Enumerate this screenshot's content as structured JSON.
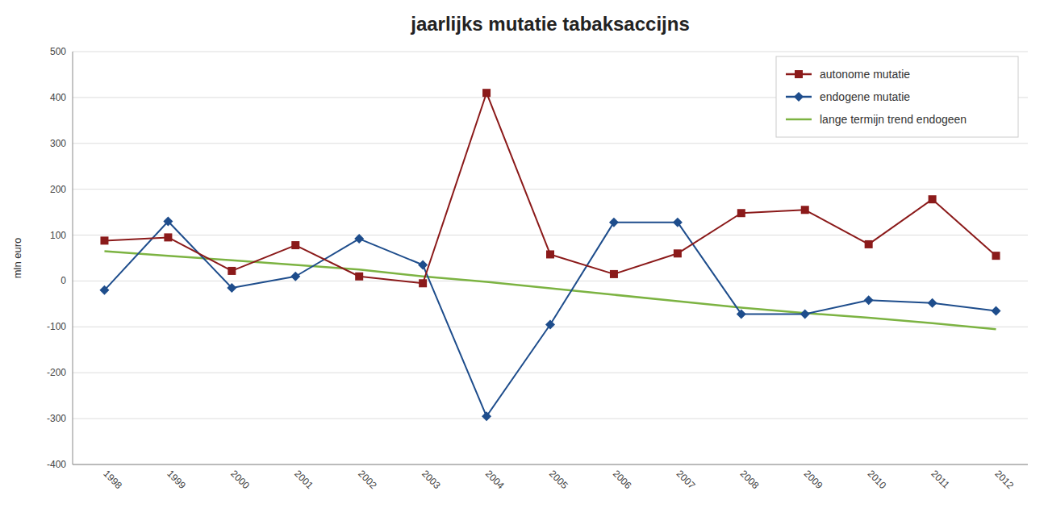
{
  "chart_data": {
    "type": "line",
    "title": "jaarlijks mutatie tabaksaccijns",
    "ylabel": "mln euro",
    "categories": [
      "1998",
      "1999",
      "2000",
      "2001",
      "2002",
      "2003",
      "2004",
      "2005",
      "2006",
      "2007",
      "2008",
      "2009",
      "2010",
      "2011",
      "2012"
    ],
    "series": [
      {
        "name": "autonome mutatie",
        "color": "#8B1A1A",
        "marker": "square",
        "values": [
          88,
          95,
          22,
          78,
          10,
          -5,
          410,
          58,
          15,
          60,
          148,
          155,
          80,
          178,
          55
        ]
      },
      {
        "name": "endogene mutatie",
        "color": "#1E4D8C",
        "marker": "diamond",
        "values": [
          -20,
          130,
          -15,
          10,
          92,
          35,
          -295,
          -95,
          128,
          128,
          -72,
          -72,
          -42,
          -48,
          -65
        ]
      },
      {
        "name": "lange termijn trend endogeen",
        "color": "#7CB342",
        "marker": "none",
        "values": [
          65,
          55,
          45,
          35,
          25,
          10,
          -2,
          -16,
          -30,
          -44,
          -58,
          -70,
          -80,
          -92,
          -105
        ]
      }
    ],
    "ylim": [
      -400,
      500
    ],
    "yticks": [
      -400,
      -300,
      -200,
      -100,
      0,
      100,
      200,
      300,
      400,
      500
    ],
    "grid": true,
    "legend": "upper right"
  }
}
